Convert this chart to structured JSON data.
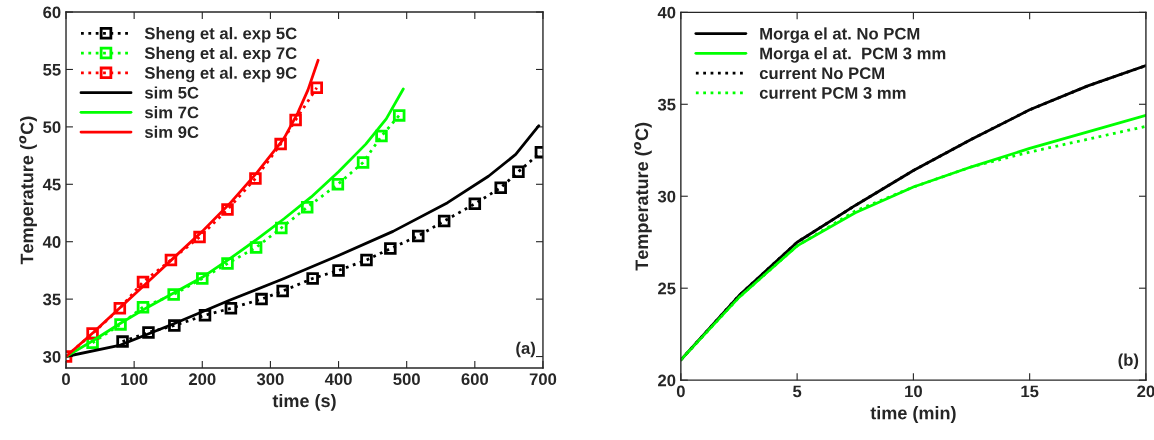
{
  "chart_data": [
    {
      "type": "line",
      "xlabel": "time (s)",
      "ylabel": "Temperature ($^{o}$C)",
      "xlim": [
        0,
        700
      ],
      "ylim": [
        29,
        60
      ],
      "xticks": [
        0,
        100,
        200,
        300,
        400,
        500,
        600,
        700
      ],
      "yticks": [
        30,
        35,
        40,
        45,
        50,
        55,
        60
      ],
      "grid": false,
      "legend": "top left",
      "annotations": [
        "(a)"
      ],
      "series": [
        {
          "name": "Sheng et al. exp 5C",
          "color": "#000000",
          "marker": "square",
          "line_style": "dotted",
          "x": [
            83,
            121,
            159,
            204,
            242,
            287,
            318,
            362,
            400,
            441,
            476,
            517,
            555,
            600,
            638,
            664,
            697
          ],
          "values": [
            31.3,
            32.1,
            32.7,
            33.6,
            34.2,
            35.0,
            35.7,
            36.8,
            37.5,
            38.4,
            39.4,
            40.5,
            41.8,
            43.3,
            44.7,
            46.1,
            47.8
          ]
        },
        {
          "name": "Sheng et al. exp 7C",
          "color": "#00ff00",
          "marker": "square",
          "line_style": "dotted",
          "x": [
            39,
            80,
            113,
            158,
            200,
            237,
            279,
            316,
            354,
            399,
            436,
            463,
            489
          ],
          "values": [
            31.2,
            32.8,
            34.3,
            35.4,
            36.8,
            38.1,
            39.5,
            41.2,
            43.0,
            45.0,
            46.9,
            49.2,
            51.0
          ]
        },
        {
          "name": "Sheng et al. exp 9C",
          "color": "#ff0000",
          "marker": "square",
          "line_style": "dotted",
          "x": [
            0,
            39,
            79,
            113,
            154,
            196,
            237,
            278,
            315,
            337,
            368
          ],
          "values": [
            30,
            32.0,
            34.2,
            36.5,
            38.4,
            40.4,
            42.8,
            45.5,
            48.5,
            50.6,
            53.4
          ]
        },
        {
          "name": "sim 5C",
          "color": "#000000",
          "marker": "none",
          "line_style": "solid",
          "x": [
            0,
            80,
            160,
            240,
            320,
            400,
            480,
            560,
            620,
            660,
            694
          ],
          "values": [
            30,
            31.0,
            32.9,
            34.9,
            36.8,
            38.8,
            40.9,
            43.4,
            45.7,
            47.6,
            50.1
          ]
        },
        {
          "name": "sim 7C",
          "color": "#00ff00",
          "marker": "none",
          "line_style": "solid",
          "x": [
            0,
            40,
            80,
            120,
            160,
            200,
            240,
            280,
            320,
            360,
            400,
            440,
            470,
            495
          ],
          "values": [
            30,
            31.4,
            32.9,
            34.3,
            35.6,
            36.9,
            38.5,
            40.2,
            42.0,
            43.9,
            46.1,
            48.5,
            50.7,
            53.3
          ]
        },
        {
          "name": "sim 9C",
          "color": "#ff0000",
          "marker": "none",
          "line_style": "solid",
          "x": [
            0,
            40,
            80,
            120,
            160,
            200,
            240,
            280,
            320,
            340,
            355,
            370
          ],
          "values": [
            30,
            32.1,
            34.3,
            36.5,
            38.7,
            40.9,
            43.3,
            46.0,
            49.0,
            51.2,
            53.2,
            55.8
          ]
        }
      ]
    },
    {
      "type": "line",
      "xlabel": "time (min)",
      "ylabel": "Temperature ($^{o}$C)",
      "xlim": [
        0,
        20
      ],
      "ylim": [
        20,
        40
      ],
      "xticks": [
        0,
        5,
        10,
        15,
        20
      ],
      "yticks": [
        20,
        25,
        30,
        35,
        40
      ],
      "grid": false,
      "legend": "top left",
      "annotations": [
        "(b)"
      ],
      "series": [
        {
          "name": "Morga el at. No PCM",
          "color": "#000000",
          "marker": "none",
          "line_style": "solid",
          "x": [
            0,
            2.5,
            5,
            7.5,
            10,
            12.5,
            15,
            17.5,
            20
          ],
          "values": [
            21.1,
            24.6,
            27.5,
            29.5,
            31.4,
            33.1,
            34.7,
            36.0,
            37.1
          ]
        },
        {
          "name": "Morga el at.  PCM 3 mm",
          "color": "#00ff00",
          "marker": "none",
          "line_style": "solid",
          "x": [
            0,
            2.5,
            5,
            7.5,
            10,
            12.5,
            15,
            17.5,
            20
          ],
          "values": [
            21.1,
            24.5,
            27.3,
            29.1,
            30.5,
            31.6,
            32.6,
            33.5,
            34.4
          ]
        },
        {
          "name": "current No PCM",
          "color": "#000000",
          "marker": "none",
          "line_style": "dotted",
          "x": [
            0,
            2.5,
            5,
            7.5,
            10,
            12.5,
            15,
            17.5,
            20
          ],
          "values": [
            21.1,
            24.6,
            27.5,
            29.5,
            31.4,
            33.1,
            34.7,
            36.0,
            37.1
          ]
        },
        {
          "name": "current PCM 3 mm",
          "color": "#00ff00",
          "marker": "none",
          "line_style": "dotted",
          "x": [
            0,
            2.5,
            5,
            7.5,
            10,
            12.5,
            15,
            17.5,
            20
          ],
          "values": [
            21.1,
            24.5,
            27.3,
            29.2,
            30.5,
            31.6,
            32.4,
            33.1,
            33.8
          ]
        }
      ]
    }
  ]
}
